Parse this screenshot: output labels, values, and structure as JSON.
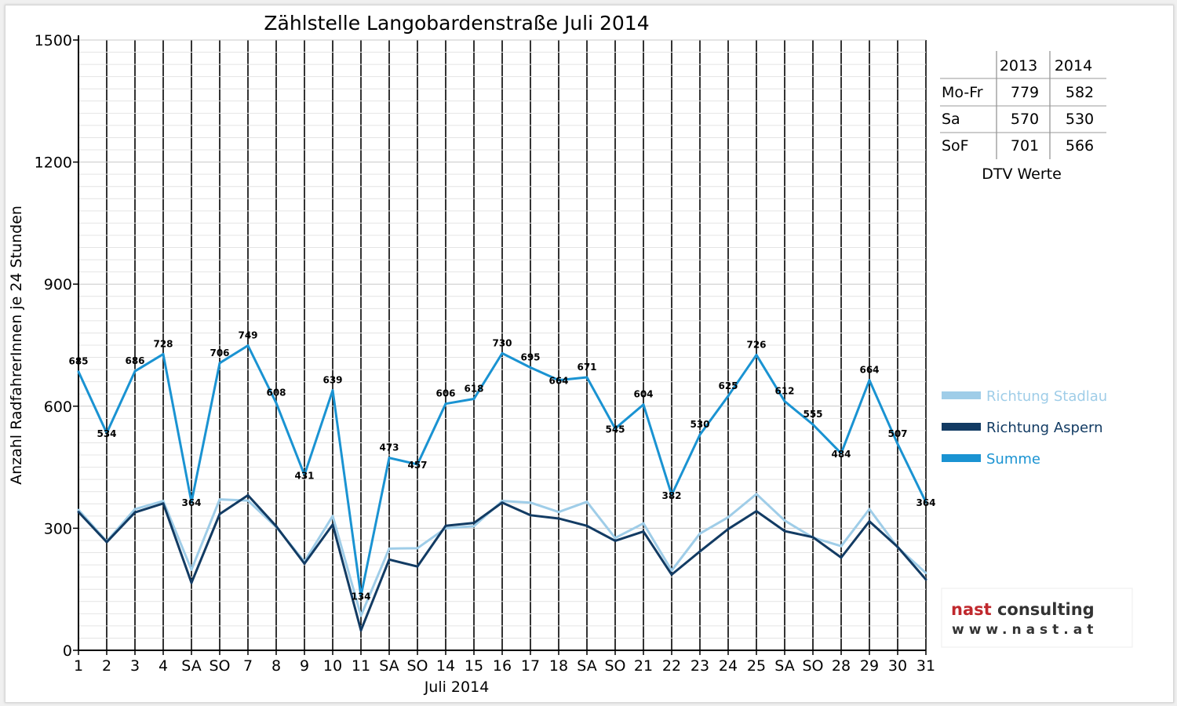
{
  "chart_data": {
    "type": "line",
    "title": "Zählstelle Langobardenstraße Juli 2014",
    "xlabel": "Juli 2014",
    "ylabel": "Anzahl RadfahrerInnen je 24 Stunden",
    "ylim": [
      0,
      1500
    ],
    "yticks": [
      "0",
      "300",
      "600",
      "900",
      "1200",
      "1500"
    ],
    "categories": [
      "1",
      "2",
      "3",
      "4",
      "SA",
      "SO",
      "7",
      "8",
      "9",
      "10",
      "11",
      "SA",
      "SO",
      "14",
      "15",
      "16",
      "17",
      "18",
      "SA",
      "SO",
      "21",
      "22",
      "23",
      "24",
      "25",
      "SA",
      "SO",
      "28",
      "29",
      "30",
      "31"
    ],
    "weekend_labels": [
      "SO"
    ],
    "weekend_color": "#e00000",
    "grid": true,
    "legend_position": "right",
    "series": [
      {
        "name": "Richtung Stadlau",
        "color": "#9fcde8",
        "values": [
          345,
          268,
          347,
          367,
          198,
          371,
          368,
          303,
          218,
          330,
          85,
          250,
          251,
          300,
          305,
          367,
          363,
          340,
          365,
          276,
          312,
          196,
          287,
          327,
          384,
          319,
          277,
          256,
          347,
          253,
          190
        ]
      },
      {
        "name": "Richtung Aspern",
        "color": "#123b63",
        "values": [
          340,
          266,
          339,
          361,
          166,
          335,
          381,
          305,
          213,
          309,
          49,
          223,
          206,
          306,
          313,
          363,
          332,
          324,
          306,
          269,
          292,
          186,
          243,
          298,
          342,
          293,
          278,
          228,
          317,
          254,
          174
        ]
      },
      {
        "name": "Summe",
        "color": "#1a93d2",
        "values": [
          685,
          534,
          686,
          728,
          364,
          706,
          749,
          608,
          431,
          639,
          134,
          473,
          457,
          606,
          618,
          730,
          695,
          664,
          671,
          545,
          604,
          382,
          530,
          625,
          726,
          612,
          555,
          484,
          664,
          507,
          364
        ]
      }
    ],
    "data_labels": [
      "685",
      "534",
      "686",
      "728",
      "364",
      "706",
      "749",
      "608",
      "431",
      "639",
      "134",
      "473",
      "457",
      "606",
      "618",
      "730",
      "695",
      "664",
      "671",
      "545",
      "604",
      "382",
      "530",
      "625",
      "726",
      "612",
      "555",
      "484",
      "664",
      "507",
      "364"
    ]
  },
  "dtv_table": {
    "headers": [
      "",
      "2013",
      "2014"
    ],
    "rows": [
      {
        "label": "Mo-Fr",
        "v2013": "779",
        "v2014": "582"
      },
      {
        "label": "Sa",
        "v2013": "570",
        "v2014": "530"
      },
      {
        "label": "SoF",
        "v2013": "701",
        "v2014": "566"
      }
    ],
    "caption": "DTV Werte"
  },
  "logo": {
    "line1": "nast consulting",
    "line2": "www.nast.at",
    "color_nast": "#c0282d",
    "color_consulting": "#333333"
  }
}
